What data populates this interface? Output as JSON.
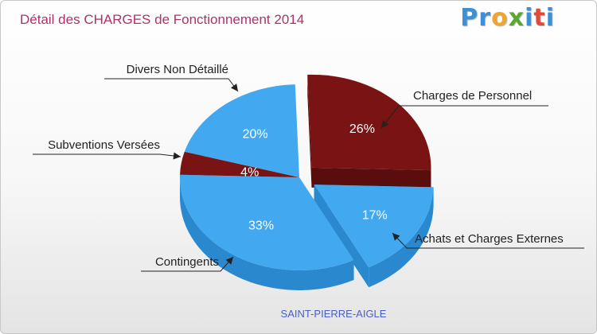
{
  "header": {
    "title": "Détail des CHARGES de Fonctionnement 2014",
    "logo_letters": [
      "P",
      "r",
      "o",
      "x",
      "i",
      "t",
      "i"
    ],
    "logo_colors": [
      "#3d8fd6",
      "#3d8fd6",
      "#f0a52e",
      "#5aa832",
      "#3d8fd6",
      "#e04a3a",
      "#3d8fd6"
    ]
  },
  "chart_data": {
    "type": "pie",
    "title": "Détail des CHARGES de Fonctionnement 2014",
    "subtitle": "SAINT-PIERRE-AIGLE",
    "slices": [
      {
        "name": "Charges de Personnel",
        "value": 26,
        "label": "26%",
        "color": "#7a1313",
        "side": "#5a0d0d",
        "exploded": true
      },
      {
        "name": "Achats et Charges Externes",
        "value": 17,
        "label": "17%",
        "color": "#42a8f0",
        "side": "#2a88cf",
        "exploded": true
      },
      {
        "name": "Contingents",
        "value": 33,
        "label": "33%",
        "color": "#42a8f0",
        "side": "#2a88cf",
        "exploded": false
      },
      {
        "name": "Subventions Versées",
        "value": 4,
        "label": "4%",
        "color": "#7a1313",
        "side": "#5a0d0d",
        "exploded": false
      },
      {
        "name": "Divers Non Détaillé",
        "value": 20,
        "label": "20%",
        "color": "#42a8f0",
        "side": "#2a88cf",
        "exploded": false
      }
    ]
  }
}
